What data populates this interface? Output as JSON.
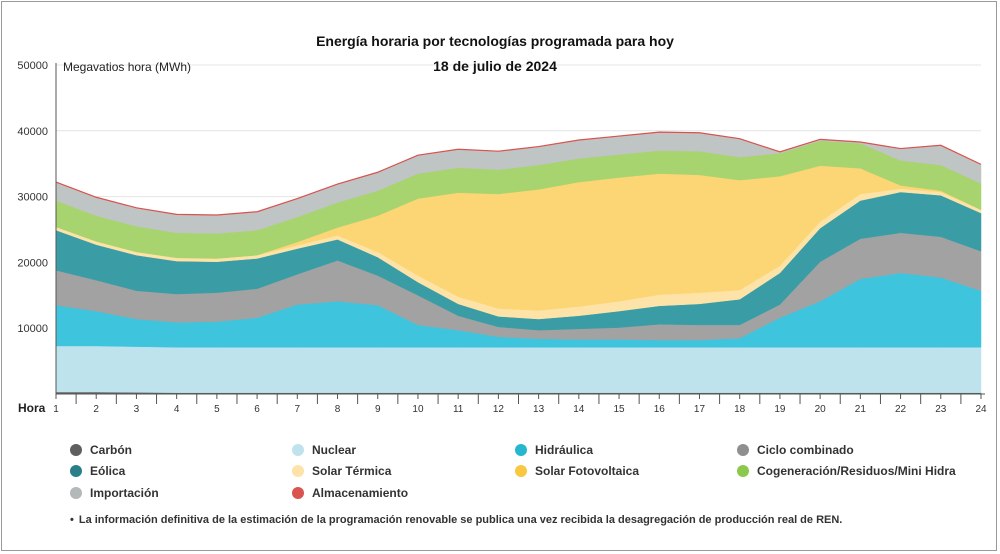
{
  "chart_data": {
    "type": "area",
    "stacked": true,
    "title": "Energía horaria por tecnologías programada para hoy",
    "subtitle": "18 de julio de 2024",
    "ylabel": "Megavatios hora (MWh)",
    "xlabel": "Hora",
    "ylim": [
      0,
      50000
    ],
    "yticks": [
      "0",
      "10000",
      "20000",
      "30000",
      "40000",
      "50000"
    ],
    "x": [
      1,
      2,
      3,
      4,
      5,
      6,
      7,
      8,
      9,
      10,
      11,
      12,
      13,
      14,
      15,
      16,
      17,
      18,
      19,
      20,
      21,
      22,
      23,
      24
    ],
    "grid": true,
    "legend_position": "bottom",
    "series": [
      {
        "name": "Carbón",
        "color": "#5f5f5f",
        "values": [
          300,
          300,
          250,
          200,
          200,
          200,
          200,
          200,
          200,
          200,
          200,
          200,
          200,
          200,
          200,
          200,
          200,
          200,
          200,
          200,
          200,
          200,
          200,
          200
        ]
      },
      {
        "name": "Nuclear",
        "color": "#bfe3ed",
        "values": [
          7000,
          7000,
          6950,
          6900,
          6900,
          6900,
          6900,
          6900,
          6900,
          6900,
          6900,
          6900,
          6900,
          6900,
          6900,
          6900,
          6900,
          6900,
          6900,
          6900,
          6900,
          6900,
          6900,
          6900
        ]
      },
      {
        "name": "Hidráulica",
        "color": "#3ec4dd",
        "values": [
          6200,
          5300,
          4200,
          3800,
          3900,
          4500,
          6500,
          7000,
          6400,
          3400,
          2600,
          1600,
          1300,
          1200,
          1200,
          1100,
          1100,
          1400,
          4500,
          7000,
          10400,
          11300,
          10600,
          8600
        ]
      },
      {
        "name": "Ciclo combinado",
        "color": "#a2a2a2",
        "values": [
          5300,
          4700,
          4300,
          4300,
          4400,
          4400,
          4600,
          6200,
          4500,
          4500,
          2200,
          1500,
          1300,
          1600,
          1800,
          2400,
          2300,
          2000,
          2000,
          6000,
          6100,
          6100,
          6200,
          6000
        ]
      },
      {
        "name": "Eólica",
        "color": "#3a9da6",
        "values": [
          6100,
          5400,
          5400,
          5000,
          4700,
          4600,
          3900,
          3200,
          2800,
          2000,
          1800,
          1600,
          1700,
          2000,
          2500,
          2800,
          3200,
          3900,
          4800,
          5100,
          5800,
          6200,
          6300,
          5800
        ]
      },
      {
        "name": "Solar Térmica",
        "color": "#fde3a7",
        "values": [
          500,
          500,
          500,
          500,
          500,
          500,
          500,
          600,
          800,
          1000,
          1100,
          1200,
          1300,
          1400,
          1500,
          1700,
          1700,
          1400,
          1100,
          1000,
          1000,
          500,
          500,
          500
        ]
      },
      {
        "name": "Solar Fotovoltaica",
        "color": "#fcd675",
        "values": [
          0,
          0,
          0,
          0,
          0,
          0,
          500,
          1200,
          5500,
          11700,
          15800,
          17400,
          18400,
          18900,
          18800,
          18400,
          17900,
          16700,
          13600,
          8500,
          3900,
          500,
          200,
          0
        ]
      },
      {
        "name": "Cogeneración/Residuos/Mini Hidra",
        "color": "#a8d46f",
        "values": [
          4000,
          3900,
          3900,
          3800,
          3800,
          3800,
          3800,
          3800,
          3800,
          3800,
          3800,
          3700,
          3700,
          3600,
          3500,
          3500,
          3600,
          3500,
          3500,
          3800,
          3800,
          3800,
          3900,
          4000
        ]
      },
      {
        "name": "Importación",
        "color": "#bfc4c4",
        "values": [
          2800,
          2800,
          2800,
          2800,
          2800,
          2800,
          2800,
          2800,
          2800,
          2800,
          2800,
          2800,
          2800,
          2800,
          2800,
          2800,
          2800,
          2800,
          200,
          200,
          200,
          1800,
          3000,
          2900
        ]
      },
      {
        "name": "Almacenamiento",
        "color": "#d9534f",
        "values": [
          0,
          0,
          0,
          0,
          0,
          0,
          0,
          0,
          0,
          0,
          0,
          0,
          0,
          0,
          0,
          0,
          0,
          0,
          0,
          0,
          0,
          0,
          0,
          0
        ]
      }
    ]
  },
  "legend": [
    {
      "label": "Carbón",
      "color": "#5f5f5f"
    },
    {
      "label": "Nuclear",
      "color": "#bfe3ed"
    },
    {
      "label": "Hidráulica",
      "color": "#26b7d0"
    },
    {
      "label": "Ciclo combinado",
      "color": "#8f8f8f"
    },
    {
      "label": "Eólica",
      "color": "#2b7f88"
    },
    {
      "label": "Solar Térmica",
      "color": "#fde3a7"
    },
    {
      "label": "Solar Fotovoltaica",
      "color": "#f7c840"
    },
    {
      "label": "Cogeneración/Residuos/Mini Hidra",
      "color": "#8cc84b"
    },
    {
      "label": "Importación",
      "color": "#b3b8b8"
    },
    {
      "label": "Almacenamiento",
      "color": "#d9534f"
    }
  ],
  "note": {
    "bullet": "•",
    "text": "La información definitiva de la estimación de la programación renovable se publica una vez recibida la desagregación de producción real de REN."
  }
}
